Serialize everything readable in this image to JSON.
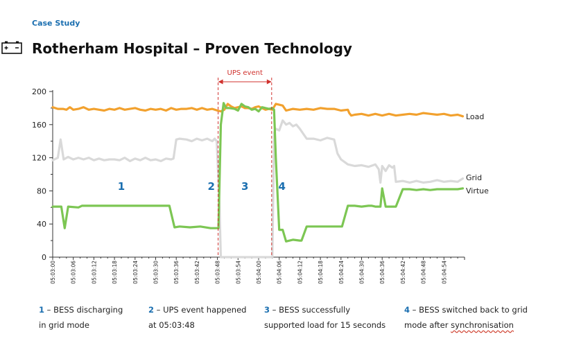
{
  "header": {
    "kicker": "Case Study",
    "title": "Rotherham Hospital – Proven Technology"
  },
  "colors": {
    "load": "#f2a12e",
    "grid": "#d9d9d9",
    "virtue": "#7cc653",
    "event_line": "#d0312d",
    "event_label": "#d0312d",
    "annotation": "#1b6fb0",
    "axis": "#333333"
  },
  "chart_data": {
    "type": "line",
    "title": "",
    "xlabel": "",
    "ylabel": "",
    "ylim": [
      0,
      200
    ],
    "yticks": [
      0,
      40,
      80,
      120,
      160,
      200
    ],
    "xlim_seconds": [
      0,
      120
    ],
    "xticks": [
      "05:03:00",
      "05:03:06",
      "05:03:12",
      "05:03:18",
      "05:03:24",
      "05:03:30",
      "05:03:36",
      "05:03:42",
      "05:03:48",
      "05:03:54",
      "05:04:00",
      "05:04:06",
      "05:04:12",
      "05:04:18",
      "05:04:24",
      "05:04:30",
      "05:04:36",
      "05:04:42",
      "05:04:48",
      "05:04:54"
    ],
    "grid": false,
    "legend": "right end labels",
    "series": [
      {
        "name": "Load",
        "color": "#f2a12e",
        "x": [
          0,
          1.5,
          3,
          4,
          5,
          6,
          7.5,
          9,
          10.5,
          12,
          13.5,
          15,
          16.5,
          18,
          19.5,
          21,
          22.5,
          24,
          25.5,
          27,
          28.5,
          30,
          31.5,
          33,
          34.5,
          36,
          37.5,
          39,
          40.5,
          42,
          43.5,
          45,
          46.5,
          48,
          49,
          50,
          51,
          52,
          53,
          54,
          55,
          56,
          57,
          58,
          59,
          60,
          61,
          62,
          63,
          64,
          65,
          66,
          67,
          68,
          70,
          72,
          74,
          76,
          78,
          80,
          82,
          84,
          86,
          86.4,
          87,
          88,
          90,
          92,
          94,
          96,
          98,
          100,
          102,
          104,
          106,
          108,
          110,
          112,
          114,
          116,
          118,
          119.5
        ],
        "y": [
          181,
          179,
          179,
          178,
          181,
          178,
          179,
          181,
          178,
          179,
          178,
          177,
          179,
          178,
          180,
          178,
          179,
          180,
          178,
          177,
          179,
          178,
          179,
          177,
          180,
          178,
          179,
          179,
          180,
          178,
          180,
          178,
          179,
          177,
          176,
          178,
          185,
          182,
          180,
          181,
          182,
          180,
          180,
          179,
          181,
          182,
          180,
          178,
          179,
          178,
          185,
          184,
          183,
          177,
          179,
          178,
          179,
          178,
          180,
          179,
          179,
          177,
          178,
          174,
          171,
          172,
          173,
          171,
          173,
          171,
          173,
          171,
          172,
          173,
          172,
          174,
          173,
          172,
          173,
          171,
          172,
          170
        ]
      },
      {
        "name": "Grid",
        "color": "#d9d9d9",
        "x": [
          0,
          1.5,
          2.3,
          3.2,
          4.5,
          6,
          7.5,
          9,
          10.5,
          12,
          13.5,
          15,
          16.5,
          18,
          19.5,
          21,
          22.5,
          24,
          25.5,
          27,
          28.5,
          30,
          31.5,
          33,
          34.5,
          35.2,
          36,
          37,
          39,
          40.5,
          42,
          43.5,
          45,
          46.5,
          47.2,
          47.8,
          48.2,
          48.6,
          49,
          64,
          64.5,
          65,
          66,
          67,
          68,
          69,
          70,
          71,
          72,
          74,
          76,
          78,
          80,
          82,
          83,
          84,
          86,
          88,
          90,
          92,
          94,
          95,
          95.5,
          96,
          97,
          98,
          99,
          99.5,
          100,
          102,
          104,
          106,
          108,
          110,
          112,
          114,
          116,
          118,
          119.5
        ],
        "y": [
          117,
          120,
          142,
          118,
          121,
          118,
          120,
          118,
          120,
          117,
          119,
          117,
          118,
          118,
          117,
          120,
          116,
          119,
          117,
          120,
          117,
          118,
          116,
          119,
          118,
          119,
          142,
          143,
          142,
          140,
          143,
          141,
          143,
          140,
          143,
          140,
          100,
          60,
          0,
          0,
          150,
          155,
          153,
          165,
          160,
          162,
          158,
          160,
          155,
          143,
          143,
          141,
          144,
          142,
          125,
          118,
          112,
          110,
          111,
          109,
          112,
          106,
          90,
          110,
          104,
          111,
          108,
          110,
          91,
          92,
          90,
          92,
          90,
          91,
          93,
          91,
          92,
          91,
          95
        ]
      },
      {
        "name": "Virtue",
        "color": "#7cc653",
        "x": [
          0,
          2.5,
          3.5,
          4.5,
          7.5,
          8.5,
          10,
          14,
          18,
          22,
          26,
          30,
          34,
          35.5,
          37,
          40,
          43,
          46,
          47.5,
          48.3,
          49,
          49.8,
          50.5,
          51.5,
          53,
          54,
          55,
          56,
          57,
          58,
          59,
          60,
          61,
          62,
          63,
          64,
          64.5,
          65,
          66,
          67,
          68,
          70,
          72,
          72.5,
          74,
          76,
          78,
          80,
          82,
          84,
          84.3,
          86,
          88,
          90,
          92,
          93,
          94,
          95,
          95.5,
          96,
          97,
          98,
          100,
          102,
          104,
          106,
          108,
          110,
          112,
          114,
          116,
          118,
          119.5
        ],
        "y": [
          61,
          61,
          35,
          61,
          60,
          62,
          62,
          62,
          62,
          62,
          62,
          62,
          62,
          36,
          37,
          36,
          37,
          35,
          35,
          35,
          160,
          186,
          180,
          180,
          179,
          177,
          185,
          182,
          181,
          178,
          179,
          176,
          181,
          180,
          179,
          180,
          178,
          120,
          33,
          33,
          19,
          21,
          20,
          20,
          37,
          37,
          37,
          37,
          37,
          37,
          37,
          62,
          62,
          61,
          62,
          62,
          61,
          61,
          61,
          83,
          61,
          61,
          61,
          82,
          82,
          81,
          82,
          81,
          82,
          82,
          82,
          82,
          83
        ]
      }
    ],
    "event": {
      "label": "UPS event",
      "start": "05:03:48",
      "end": "05:04:04"
    },
    "annotations": [
      {
        "text": "1",
        "x_seconds": 20,
        "y": 86
      },
      {
        "text": "2",
        "x_seconds": 46.2,
        "y": 86
      },
      {
        "text": "3",
        "x_seconds": 56,
        "y": 86
      },
      {
        "text": "4",
        "x_seconds": 66.8,
        "y": 86
      }
    ]
  },
  "legend": [
    {
      "num": "1",
      "line1": " – BESS discharging",
      "line2": "in grid mode",
      "squiggle": ""
    },
    {
      "num": "2",
      "line1": " – UPS event happened",
      "line2": "at 05:03:48",
      "squiggle": ""
    },
    {
      "num": "3",
      "line1": " – BESS successfully",
      "line2": "supported load for 15 seconds",
      "squiggle": ""
    },
    {
      "num": "4",
      "line1": " – BESS switched back to grid",
      "line2": "mode after ",
      "squiggle": "synchronisation"
    }
  ]
}
